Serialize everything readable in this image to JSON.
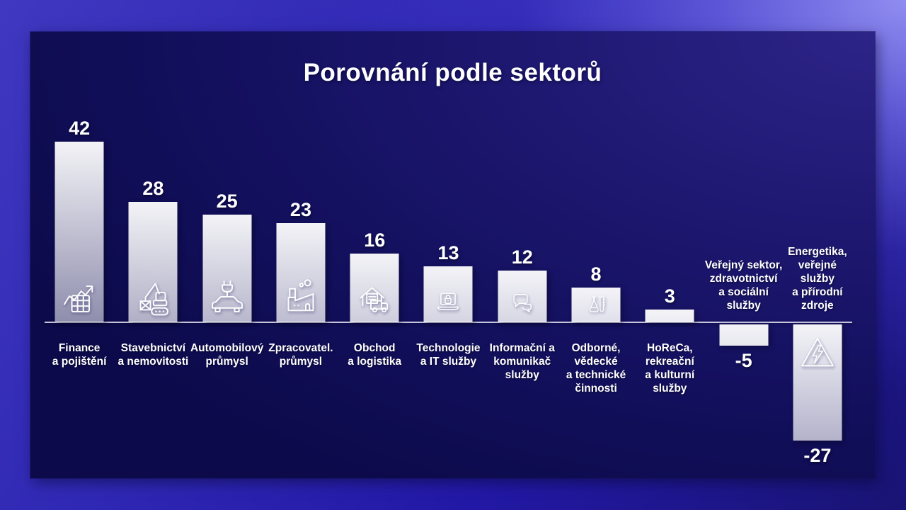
{
  "title": "Porovnání podle sektorů",
  "chart_data": {
    "type": "bar",
    "title": "Porovnání podle sektorů",
    "categories": [
      [
        "Finance",
        "a pojištění"
      ],
      [
        "Stavebnictví",
        "a nemovitosti"
      ],
      [
        "Automobilový",
        "průmysl"
      ],
      [
        "Zpracovatel.",
        "průmysl"
      ],
      [
        "Obchod",
        "a logistika"
      ],
      [
        "Technologie",
        "a IT služby"
      ],
      [
        "Informační a",
        "komunikač",
        "služby"
      ],
      [
        "Odborné,",
        "vědecké",
        "a technické",
        "činnosti"
      ],
      [
        "HoReCa,",
        "rekreační",
        "a kulturní",
        "služby"
      ],
      [
        "Veřejný sektor,",
        "zdravotnictví",
        "a sociální",
        "služby"
      ],
      [
        "Energetika,",
        "veřejné",
        "služby",
        "a přírodní",
        "zdroje"
      ]
    ],
    "values": [
      42,
      28,
      25,
      23,
      16,
      13,
      12,
      8,
      3,
      -5,
      -27
    ],
    "icons": [
      "finance-chart-icon",
      "excavator-icon",
      "electric-car-icon",
      "factory-icon",
      "warehouse-truck-icon",
      "laptop-lock-icon",
      "speech-bubbles-icon",
      "lab-flask-icon",
      null,
      null,
      "high-voltage-warning-icon"
    ],
    "ylim": [
      -30,
      45
    ],
    "baseline": 0,
    "grid": false,
    "legend": false,
    "value_label_position": "outside-end",
    "bar_fill": "#ffffff",
    "label_color": "#ffffff"
  },
  "colors": {
    "background_outer_light": "#9693f5",
    "background_outer_mid": "#3a32bc",
    "background_outer_deep": "#1c16a0",
    "panel_top_right": "#2d2488",
    "panel_mid": "#1d176f",
    "panel_bottom": "#0c0a4a",
    "axis_line": "#d9d8ea",
    "text": "#ffffff"
  }
}
